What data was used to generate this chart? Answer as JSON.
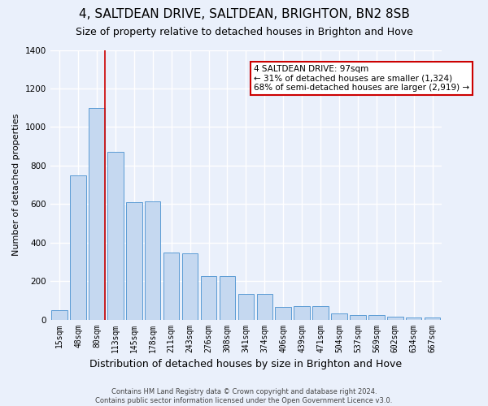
{
  "title": "4, SALTDEAN DRIVE, SALTDEAN, BRIGHTON, BN2 8SB",
  "subtitle": "Size of property relative to detached houses in Brighton and Hove",
  "xlabel": "Distribution of detached houses by size in Brighton and Hove",
  "ylabel": "Number of detached properties",
  "footnote": "Contains HM Land Registry data © Crown copyright and database right 2024.\nContains public sector information licensed under the Open Government Licence v3.0.",
  "categories": [
    "15sqm",
    "48sqm",
    "80sqm",
    "113sqm",
    "145sqm",
    "178sqm",
    "211sqm",
    "243sqm",
    "276sqm",
    "308sqm",
    "341sqm",
    "374sqm",
    "406sqm",
    "439sqm",
    "471sqm",
    "504sqm",
    "537sqm",
    "569sqm",
    "602sqm",
    "634sqm",
    "667sqm"
  ],
  "values": [
    50,
    750,
    1100,
    870,
    610,
    615,
    350,
    345,
    225,
    225,
    135,
    135,
    65,
    70,
    70,
    30,
    25,
    25,
    15,
    10,
    10
  ],
  "bar_color": "#c5d8f0",
  "bar_edge_color": "#5b9bd5",
  "annotation_text": "4 SALTDEAN DRIVE: 97sqm\n← 31% of detached houses are smaller (1,324)\n68% of semi-detached houses are larger (2,919) →",
  "annotation_box_color": "#ffffff",
  "annotation_box_edge": "#cc0000",
  "vline_color": "#cc0000",
  "vline_x": 2.425,
  "ylim": [
    0,
    1400
  ],
  "yticks": [
    0,
    200,
    400,
    600,
    800,
    1000,
    1200,
    1400
  ],
  "background_color": "#eaf0fb",
  "grid_color": "#ffffff",
  "title_fontsize": 11,
  "subtitle_fontsize": 9,
  "xlabel_fontsize": 9,
  "ylabel_fontsize": 8,
  "tick_fontsize": 7,
  "annot_fontsize": 7.5,
  "footnote_fontsize": 6
}
